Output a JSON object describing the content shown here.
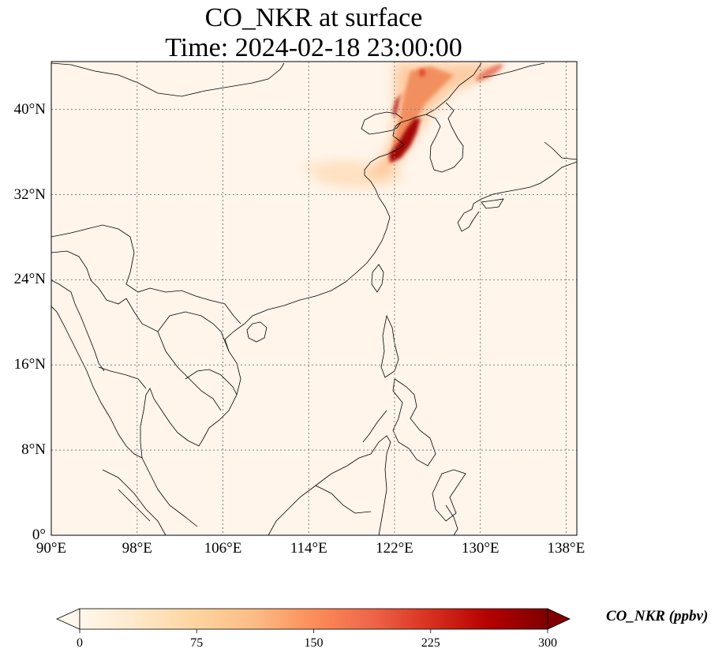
{
  "figure": {
    "title_line1": "CO_NKR at surface",
    "title_line2": "Time: 2024-02-18 23:00:00"
  },
  "map": {
    "lon_range": [
      90,
      139
    ],
    "lat_range": [
      0,
      44.5
    ],
    "xticks": [
      {
        "value": 90,
        "label": "90°E"
      },
      {
        "value": 98,
        "label": "98°E"
      },
      {
        "value": 106,
        "label": "106°E"
      },
      {
        "value": 114,
        "label": "114°E"
      },
      {
        "value": 122,
        "label": "122°E"
      },
      {
        "value": 130,
        "label": "130°E"
      },
      {
        "value": 138,
        "label": "138°E"
      }
    ],
    "yticks": [
      {
        "value": 0,
        "label": "0°"
      },
      {
        "value": 8,
        "label": "8°N"
      },
      {
        "value": 16,
        "label": "16°N"
      },
      {
        "value": 24,
        "label": "24°N"
      },
      {
        "value": 32,
        "label": "32°N"
      },
      {
        "value": 40,
        "label": "40°N"
      }
    ],
    "gridlines": true,
    "colors": {
      "background": "#fff5eb",
      "coast": "#000000",
      "grid": "#808080"
    }
  },
  "colorbar": {
    "label": "CO_NKR (ppbv)",
    "range": [
      0,
      300
    ],
    "extend": "both",
    "colormap": "OrRd",
    "stops": [
      "#fff7ec",
      "#fee8c8",
      "#fdd49e",
      "#fdbb84",
      "#fc8d59",
      "#ef6548",
      "#d7301f",
      "#b30000",
      "#7f0000"
    ],
    "ticks": [
      {
        "value": 0,
        "label": "0"
      },
      {
        "value": 75,
        "label": "75"
      },
      {
        "value": 150,
        "label": "150"
      },
      {
        "value": 225,
        "label": "225"
      },
      {
        "value": 300,
        "label": "300"
      }
    ]
  },
  "plume": [
    {
      "lon": 125.5,
      "lat": 44.0,
      "value": 110
    },
    {
      "lon": 127.0,
      "lat": 42.5,
      "value": 100
    },
    {
      "lon": 125.0,
      "lat": 41.5,
      "value": 130
    },
    {
      "lon": 123.5,
      "lat": 40.8,
      "value": 260
    },
    {
      "lon": 123.3,
      "lat": 38.5,
      "value": 240
    },
    {
      "lon": 122.6,
      "lat": 36.8,
      "value": 280
    },
    {
      "lon": 121.0,
      "lat": 35.5,
      "value": 60
    },
    {
      "lon": 118.0,
      "lat": 35.0,
      "value": 30
    }
  ]
}
